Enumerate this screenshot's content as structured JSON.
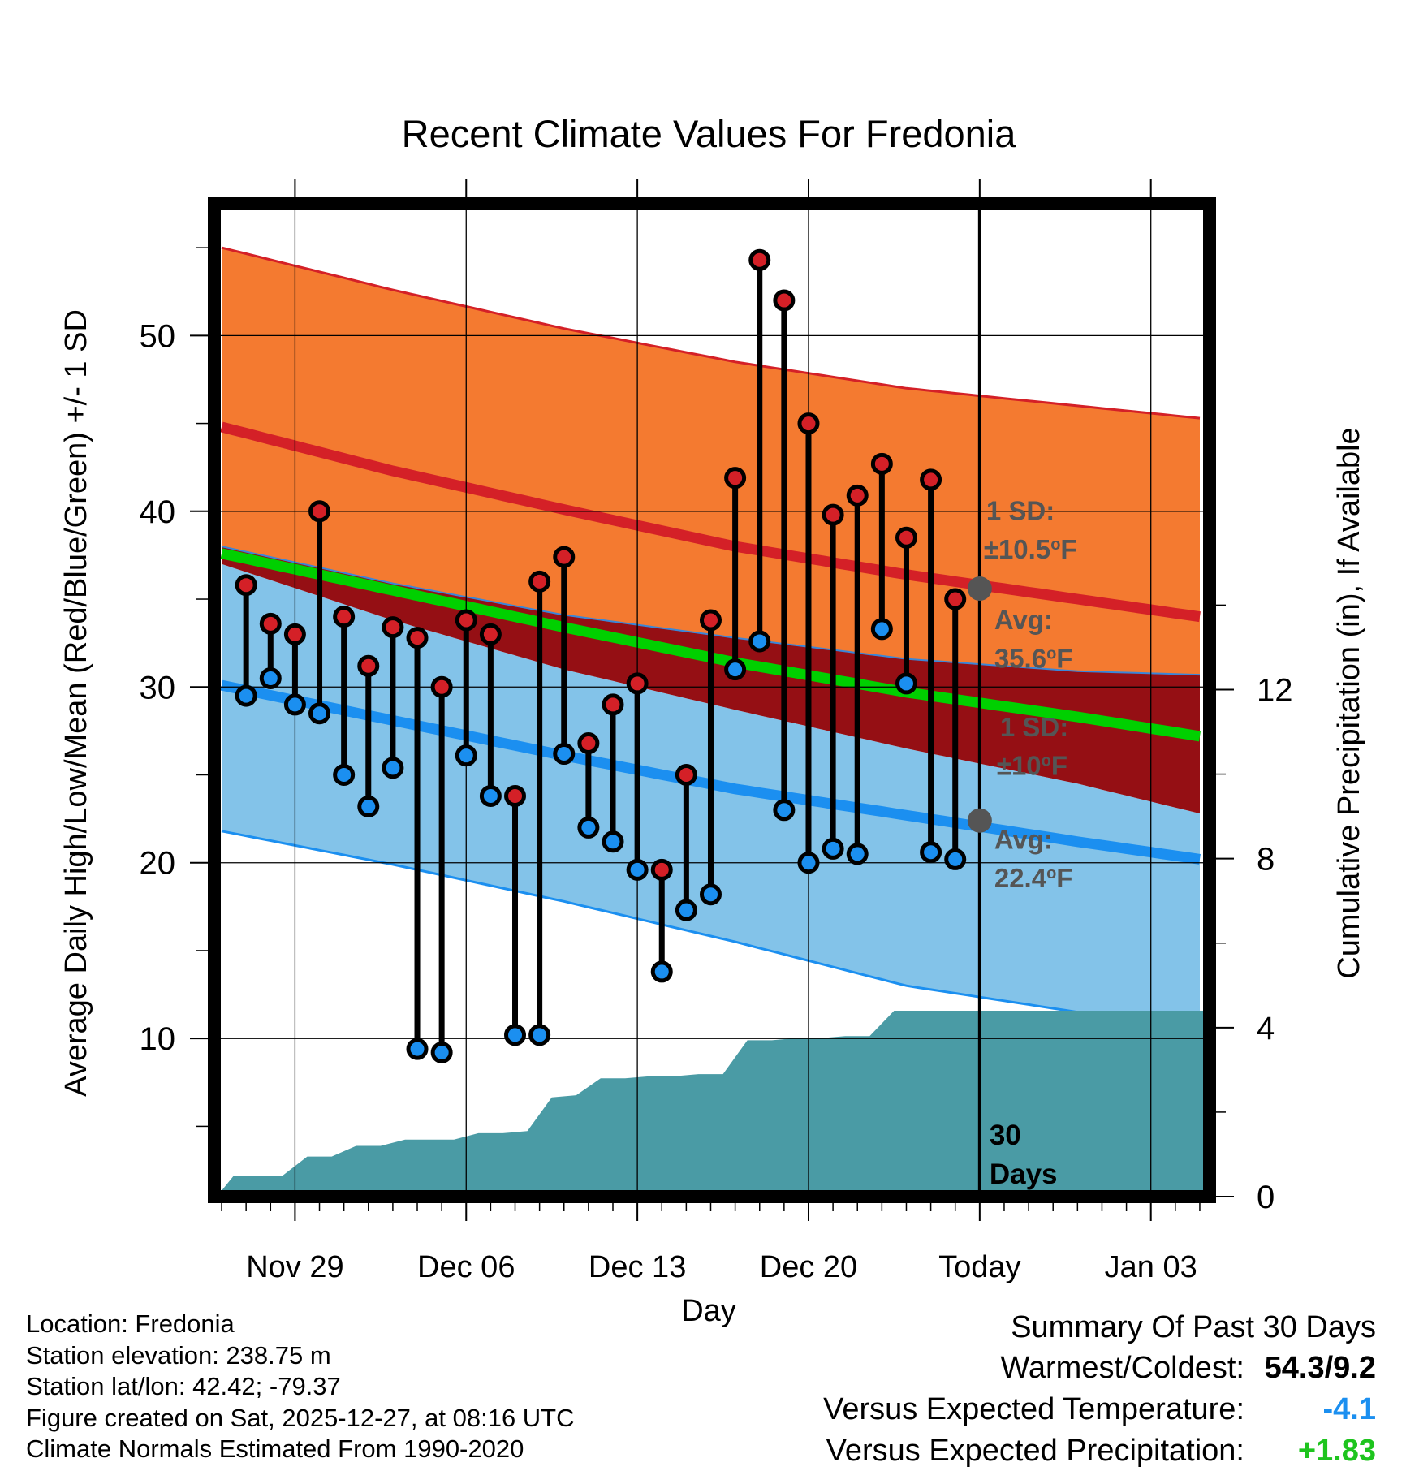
{
  "chart_data": {
    "type": "climate-range",
    "title": "Recent Climate Values For Fredonia",
    "xlabel": "Day",
    "ylabel_left": "Average Daily High/Low/Mean (Red/Blue/Green) +/- 1 SD",
    "ylabel_right": "Cumulative Precipitation (in), If Available",
    "x_ticks": [
      "Nov 29",
      "Dec 06",
      "Dec 13",
      "Dec 20",
      "Today",
      "Jan 03"
    ],
    "x_tick_days": [
      3,
      10,
      17,
      24,
      31,
      38
    ],
    "x_range_days": [
      -0.3,
      40.4
    ],
    "ylim_left": [
      1,
      57.5
    ],
    "yticks_left": [
      10,
      20,
      30,
      40,
      50
    ],
    "ylim_right": [
      0,
      23.5
    ],
    "yticks_right": [
      0,
      4,
      8,
      12
    ],
    "normals": {
      "days": [
        0,
        7,
        14,
        21,
        28,
        35,
        40
      ],
      "high_avg": [
        44.8,
        42.3,
        40.1,
        38.0,
        36.4,
        35.0,
        34.0
      ],
      "high_sd_upper": [
        55.0,
        52.6,
        50.4,
        48.5,
        47.0,
        46.0,
        45.3
      ],
      "high_sd_lower": [
        38.0,
        35.9,
        34.1,
        32.8,
        31.6,
        30.9,
        30.7
      ],
      "mean": [
        37.6,
        35.5,
        33.4,
        31.4,
        29.7,
        28.3,
        27.2
      ],
      "low_avg": [
        30.1,
        28.1,
        26.1,
        24.2,
        22.7,
        21.2,
        20.2
      ],
      "low_sd_upper": [
        37.0,
        33.8,
        31.0,
        28.7,
        26.5,
        24.5,
        22.8
      ],
      "low_sd_lower": [
        21.8,
        19.9,
        17.8,
        15.5,
        13.0,
        11.5,
        10.5
      ]
    },
    "daily_days": [
      1,
      2,
      3,
      4,
      5,
      6,
      7,
      8,
      9,
      10,
      11,
      12,
      13,
      14,
      15,
      16,
      17,
      18,
      19,
      20,
      21,
      22,
      23,
      24,
      25,
      26,
      27,
      28,
      29,
      30
    ],
    "daily_high": [
      35.8,
      33.6,
      33.0,
      40.0,
      34.0,
      31.2,
      33.4,
      32.8,
      30.0,
      33.8,
      33.0,
      23.8,
      36.0,
      37.4,
      26.8,
      29.0,
      30.2,
      19.6,
      25.0,
      33.8,
      41.9,
      54.3,
      52.0,
      45.0,
      39.8,
      40.9,
      42.7,
      38.5,
      41.8,
      35.0
    ],
    "daily_low": [
      29.5,
      30.5,
      29.0,
      28.5,
      25.0,
      23.2,
      25.4,
      9.4,
      9.2,
      26.1,
      23.8,
      10.2,
      10.2,
      26.2,
      22.0,
      21.2,
      19.6,
      13.8,
      17.3,
      18.2,
      31.0,
      32.6,
      23.0,
      20.0,
      20.8,
      20.5,
      33.3,
      30.2,
      20.6,
      20.2
    ],
    "precip_days": [
      -0.2,
      0.5,
      1.5,
      2.5,
      3.5,
      4.5,
      5.5,
      6.5,
      7.5,
      8.5,
      9.5,
      10.5,
      11.5,
      12.5,
      13.5,
      14.5,
      15.5,
      16.5,
      17.5,
      18.5,
      19.5,
      20.5,
      21.5,
      22.5,
      23.5,
      24.5,
      25.5,
      26.5,
      27.5,
      28.5,
      29.5,
      30.5,
      40.4
    ],
    "precip_cum": [
      0.0,
      0.5,
      0.5,
      0.5,
      0.95,
      0.95,
      1.2,
      1.2,
      1.35,
      1.35,
      1.35,
      1.5,
      1.5,
      1.55,
      2.35,
      2.4,
      2.8,
      2.8,
      2.85,
      2.85,
      2.9,
      2.9,
      3.7,
      3.7,
      3.75,
      3.75,
      3.8,
      3.8,
      4.4,
      4.4,
      4.4,
      4.4,
      4.4
    ],
    "today_day": 31,
    "today_high_avg": 35.6,
    "today_low_avg": 22.4,
    "colors": {
      "high_band": "#f47a30",
      "high_line": "#d42027",
      "mean_band": "#950f14",
      "mean_line": "#00d000",
      "low_band": "#83c3e9",
      "low_line": "#1b8ff0",
      "precip": "#4a9ba5",
      "high_marker": "#d42027",
      "low_marker": "#1b8ff0",
      "annot": "#555555"
    },
    "annotations": {
      "high_sd_label": "1 SD:",
      "high_sd_value": "±10.5",
      "high_avg_label": "Avg:",
      "high_avg_value": "35.6",
      "low_sd_label": "1 SD:",
      "low_sd_value": "±10",
      "low_avg_label": "Avg:",
      "low_avg_value": "22.4",
      "degree_sup": "o",
      "unit": "F",
      "period_number": "30",
      "period_word": "Days"
    }
  },
  "footer": {
    "location": "Location: Fredonia",
    "elevation": "Station elevation: 238.75 m",
    "latlon": "Station lat/lon: 42.42; -79.37",
    "created": "Figure created on Sat, 2025-12-27, at 08:16 UTC",
    "normals": "Climate Normals Estimated From 1990-2020"
  },
  "summary": {
    "title": "Summary Of Past 30 Days",
    "warmest_label": "Warmest/Coldest:",
    "warmest_value": "54.3/9.2",
    "temp_label": "Versus Expected Temperature:",
    "temp_value": "-4.1",
    "temp_color": "#1b8ff0",
    "precip_label": "Versus Expected Precipitation:",
    "precip_value": "+1.83",
    "precip_color": "#1ec41e"
  }
}
